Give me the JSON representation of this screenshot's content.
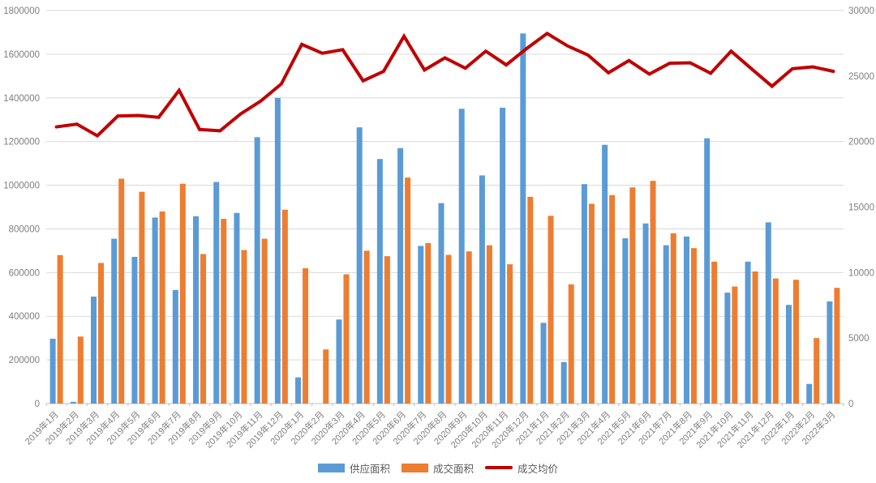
{
  "page": {
    "background": "#FFFFFF"
  },
  "legend": {
    "items": [
      {
        "label": "供应面积",
        "type": "bar",
        "color": "#5B9BD5"
      },
      {
        "label": "成交面积",
        "type": "bar",
        "color": "#ED7D31"
      },
      {
        "label": "成交均价",
        "type": "line",
        "color": "#C00000"
      }
    ]
  },
  "chart_data": {
    "type": "combo-bar-line",
    "title": "",
    "categories": [
      "2019年1月",
      "2019年2月",
      "2019年3月",
      "2019年4月",
      "2019年5月",
      "2019年6月",
      "2019年7月",
      "2019年8月",
      "2019年9月",
      "2019年10月",
      "2019年11月",
      "2019年12月",
      "2020年1月",
      "2020年2月",
      "2020年3月",
      "2020年4月",
      "2020年5月",
      "2020年6月",
      "2020年7月",
      "2020年8月",
      "2020年9月",
      "2020年10月",
      "2020年11月",
      "2020年12月",
      "2021年1月",
      "2021年2月",
      "2021年3月",
      "2021年4月",
      "2021年5月",
      "2021年6月",
      "2021年7月",
      "2021年8月",
      "2021年9月",
      "2021年10月",
      "2021年11月",
      "2021年12月",
      "2022年1月",
      "2022年2月",
      "2022年3月"
    ],
    "series": [
      {
        "name": "供应面积",
        "type": "bar",
        "axis": "left",
        "color": "#5B9BD5",
        "values": [
          297000,
          8000,
          490000,
          755000,
          672000,
          852000,
          520000,
          858000,
          1015000,
          873000,
          1220000,
          1400000,
          120000,
          0,
          385000,
          1265000,
          1120000,
          1170000,
          722000,
          918000,
          1350000,
          1045000,
          1355000,
          1695000,
          370000,
          190000,
          1005000,
          1185000,
          757000,
          825000,
          725000,
          765000,
          1215000,
          508000,
          650000,
          830000,
          452000,
          90000,
          468000
        ]
      },
      {
        "name": "成交面积",
        "type": "bar",
        "axis": "left",
        "color": "#ED7D31",
        "values": [
          680000,
          307000,
          644000,
          1030000,
          970000,
          880000,
          1007000,
          685000,
          846000,
          703000,
          755000,
          888000,
          620000,
          248000,
          592000,
          700000,
          675000,
          1035000,
          735000,
          681000,
          697000,
          725000,
          638000,
          947000,
          860000,
          546000,
          915000,
          955000,
          990000,
          1020000,
          780000,
          712000,
          650000,
          536000,
          605000,
          573000,
          567000,
          300000,
          530000
        ]
      },
      {
        "name": "成交均价",
        "type": "line",
        "axis": "right",
        "color": "#C00000",
        "values": [
          21120,
          21330,
          20440,
          21950,
          21990,
          21850,
          23910,
          20920,
          20820,
          22100,
          23100,
          24400,
          27420,
          26740,
          27010,
          24640,
          25360,
          28040,
          25460,
          26390,
          25600,
          26900,
          25850,
          27100,
          28250,
          27300,
          26600,
          25250,
          26180,
          25150,
          25980,
          26010,
          25210,
          26900,
          25550,
          24220,
          25560,
          25700,
          25360
        ]
      }
    ],
    "left_axis": {
      "min": 0,
      "max": 1800000,
      "step": 200000,
      "labels": [
        "0",
        "200000",
        "400000",
        "600000",
        "800000",
        "1000000",
        "1200000",
        "1400000",
        "1600000",
        "1800000"
      ]
    },
    "right_axis": {
      "min": 0,
      "max": 30000,
      "step": 5000,
      "labels": [
        "0",
        "5000",
        "10000",
        "15000",
        "20000",
        "25000",
        "30000"
      ]
    },
    "grid": true,
    "legend_position": "bottom",
    "x_label_rotation": -45,
    "colors": {
      "grid": "#D9D9D9",
      "axis_line": "#BFBFBF",
      "tick_text": "#7F7F7F"
    }
  }
}
